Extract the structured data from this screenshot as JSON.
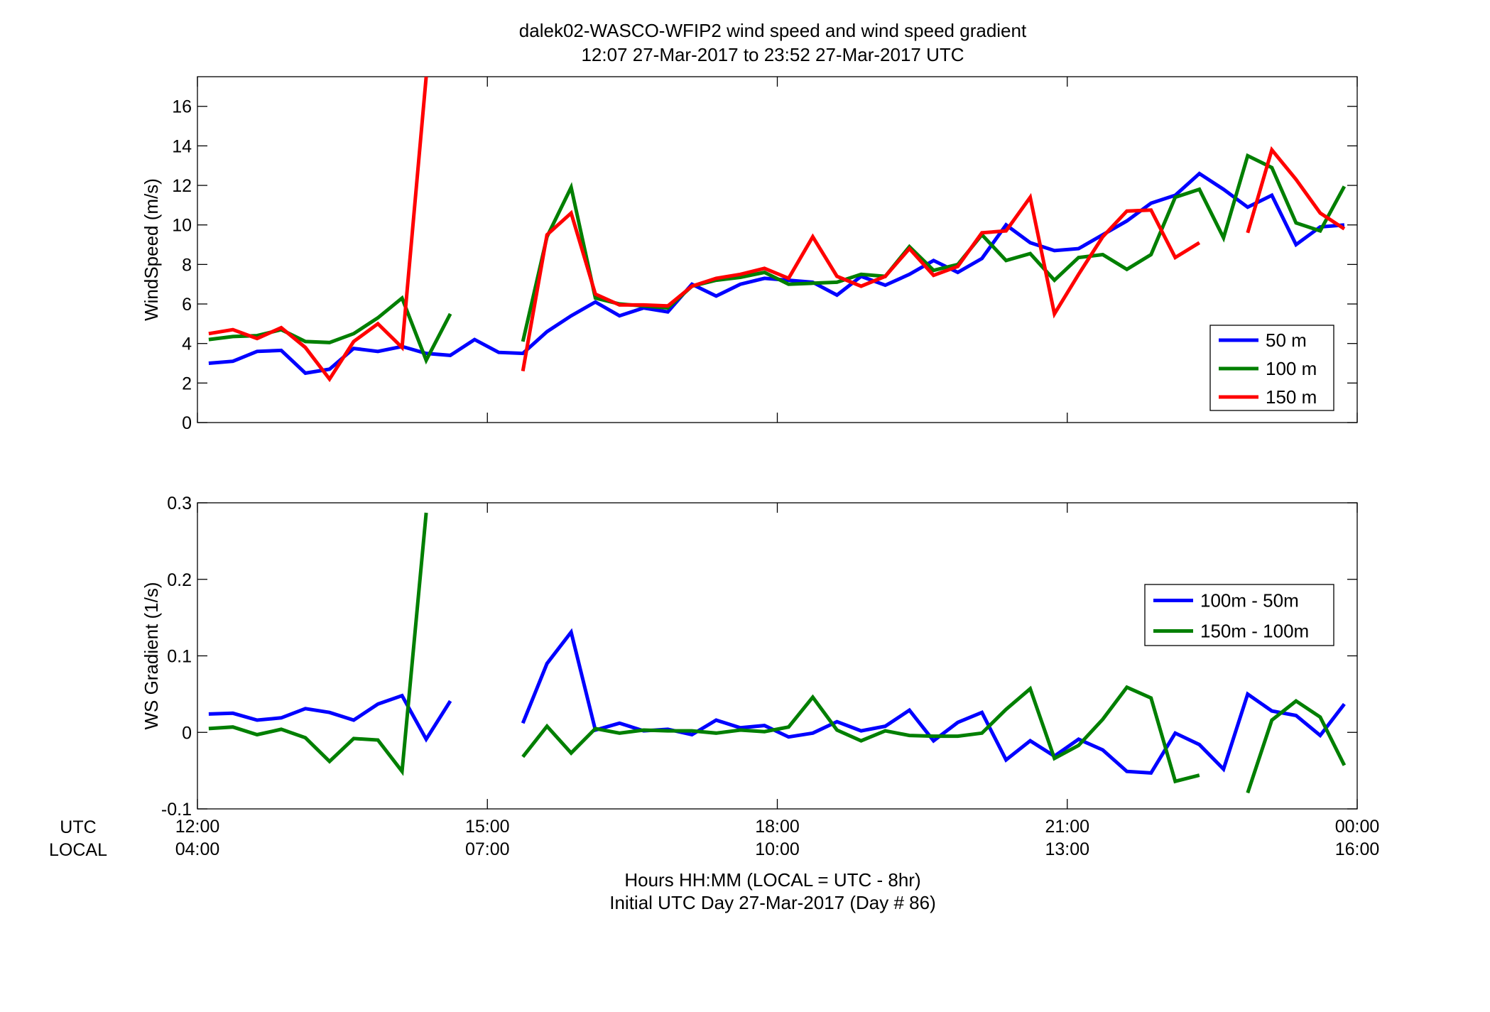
{
  "title_line1": "dalek02-WASCO-WFIP2  wind speed and wind speed gradient",
  "title_line2": "12:07 27-Mar-2017 to 23:52 27-Mar-2017  UTC",
  "xlabel_line1": "Hours HH:MM  (LOCAL = UTC - 8hr)",
  "xlabel_line2": "Initial UTC Day 27-Mar-2017 (Day # 86)",
  "row_label_utc": "UTC",
  "row_label_local": "LOCAL",
  "chart_data": [
    {
      "type": "line",
      "ylabel": "WindSpeed (m/s)",
      "xlim": [
        12,
        24
      ],
      "ylim": [
        0,
        17.5
      ],
      "yticks": [
        0,
        2,
        4,
        6,
        8,
        10,
        12,
        14,
        16
      ],
      "grid": false,
      "legend": "lower-right",
      "series": [
        {
          "name": "50 m",
          "color": "#0000ff",
          "points": [
            [
              12.117,
              3.0
            ],
            [
              12.367,
              3.1
            ],
            [
              12.617,
              3.6
            ],
            [
              12.867,
              3.65
            ],
            [
              13.117,
              2.5
            ],
            [
              13.367,
              2.7
            ],
            [
              13.617,
              3.75
            ],
            [
              13.867,
              3.6
            ],
            [
              14.117,
              3.85
            ],
            [
              14.367,
              3.5
            ],
            [
              14.617,
              3.4
            ],
            [
              14.867,
              4.2
            ],
            [
              15.117,
              3.55
            ],
            [
              15.367,
              3.5
            ],
            [
              15.617,
              4.6
            ],
            [
              15.867,
              5.4
            ],
            [
              16.117,
              6.1
            ],
            [
              16.367,
              5.4
            ],
            [
              16.617,
              5.8
            ],
            [
              16.867,
              5.6
            ],
            [
              17.117,
              7.0
            ],
            [
              17.367,
              6.4
            ],
            [
              17.617,
              7.0
            ],
            [
              17.867,
              7.3
            ],
            [
              18.117,
              7.2
            ],
            [
              18.367,
              7.1
            ],
            [
              18.617,
              6.45
            ],
            [
              18.867,
              7.4
            ],
            [
              19.117,
              6.95
            ],
            [
              19.367,
              7.5
            ],
            [
              19.617,
              8.2
            ],
            [
              19.867,
              7.6
            ],
            [
              20.117,
              8.3
            ],
            [
              20.367,
              10.0
            ],
            [
              20.617,
              9.1
            ],
            [
              20.867,
              8.7
            ],
            [
              21.117,
              8.8
            ],
            [
              21.367,
              9.5
            ],
            [
              21.617,
              10.2
            ],
            [
              21.867,
              11.1
            ],
            [
              22.117,
              11.5
            ],
            [
              22.367,
              12.6
            ],
            [
              22.617,
              11.8
            ],
            [
              22.867,
              10.9
            ],
            [
              23.117,
              11.5
            ],
            [
              23.367,
              9.0
            ],
            [
              23.617,
              9.9
            ],
            [
              23.867,
              10.0
            ]
          ]
        },
        {
          "name": "100 m",
          "color": "#007f00",
          "points": [
            [
              12.117,
              4.2
            ],
            [
              12.367,
              4.35
            ],
            [
              12.617,
              4.4
            ],
            [
              12.867,
              4.7
            ],
            [
              13.117,
              4.1
            ],
            [
              13.367,
              4.05
            ],
            [
              13.617,
              4.5
            ],
            [
              13.867,
              5.3
            ],
            [
              14.117,
              6.3
            ],
            [
              14.367,
              3.15
            ],
            [
              14.617,
              5.5
            ],
            null,
            null,
            [
              15.367,
              4.1
            ],
            [
              15.617,
              9.4
            ],
            [
              15.867,
              11.9
            ],
            [
              16.117,
              6.3
            ],
            [
              16.367,
              6.0
            ],
            [
              16.617,
              5.9
            ],
            [
              16.867,
              5.8
            ],
            [
              17.117,
              6.9
            ],
            [
              17.367,
              7.2
            ],
            [
              17.617,
              7.35
            ],
            [
              17.867,
              7.6
            ],
            [
              18.117,
              7.0
            ],
            [
              18.367,
              7.05
            ],
            [
              18.617,
              7.1
            ],
            [
              18.867,
              7.5
            ],
            [
              19.117,
              7.4
            ],
            [
              19.367,
              8.9
            ],
            [
              19.617,
              7.7
            ],
            [
              19.867,
              8.0
            ],
            [
              20.117,
              9.5
            ],
            [
              20.367,
              8.2
            ],
            [
              20.617,
              8.55
            ],
            [
              20.867,
              7.2
            ],
            [
              21.117,
              8.35
            ],
            [
              21.367,
              8.5
            ],
            [
              21.617,
              7.75
            ],
            [
              21.867,
              8.5
            ],
            [
              22.117,
              11.4
            ],
            [
              22.367,
              11.8
            ],
            [
              22.617,
              9.35
            ],
            [
              22.867,
              13.5
            ],
            [
              23.117,
              12.9
            ],
            [
              23.367,
              10.1
            ],
            [
              23.617,
              9.7
            ],
            [
              23.867,
              11.95
            ]
          ]
        },
        {
          "name": "150 m",
          "color": "#ff0000",
          "points": [
            [
              12.117,
              4.5
            ],
            [
              12.367,
              4.7
            ],
            [
              12.617,
              4.25
            ],
            [
              12.867,
              4.8
            ],
            [
              13.117,
              3.8
            ],
            [
              13.367,
              2.2
            ],
            [
              13.617,
              4.1
            ],
            [
              13.867,
              5.0
            ],
            [
              14.117,
              3.8
            ],
            [
              14.367,
              17.5
            ],
            null,
            null,
            null,
            [
              15.367,
              2.6
            ],
            [
              15.617,
              9.5
            ],
            [
              15.867,
              10.6
            ],
            [
              16.117,
              6.5
            ],
            [
              16.367,
              5.95
            ],
            [
              16.617,
              5.95
            ],
            [
              16.867,
              5.9
            ],
            [
              17.117,
              6.9
            ],
            [
              17.367,
              7.3
            ],
            [
              17.617,
              7.5
            ],
            [
              17.867,
              7.8
            ],
            [
              18.117,
              7.3
            ],
            [
              18.367,
              9.4
            ],
            [
              18.617,
              7.4
            ],
            [
              18.867,
              6.9
            ],
            [
              19.117,
              7.4
            ],
            [
              19.367,
              8.8
            ],
            [
              19.617,
              7.45
            ],
            [
              19.867,
              7.9
            ],
            [
              20.117,
              9.6
            ],
            [
              20.367,
              9.7
            ],
            [
              20.617,
              11.4
            ],
            [
              20.867,
              5.5
            ],
            [
              21.117,
              7.5
            ],
            [
              21.367,
              9.4
            ],
            [
              21.617,
              10.7
            ],
            [
              21.867,
              10.75
            ],
            [
              22.117,
              8.35
            ],
            [
              22.367,
              9.1
            ],
            null,
            [
              22.867,
              9.6
            ],
            [
              23.117,
              13.8
            ],
            [
              23.367,
              12.3
            ],
            [
              23.617,
              10.6
            ],
            [
              23.867,
              9.8
            ]
          ]
        }
      ]
    },
    {
      "type": "line",
      "ylabel": "WS Gradient (1/s)",
      "xlim": [
        12,
        24
      ],
      "ylim": [
        -0.1,
        0.3
      ],
      "yticks": [
        -0.1,
        0,
        0.1,
        0.2,
        0.3
      ],
      "ytick_labels": [
        "-0.1",
        "0",
        "0.1",
        "0.2",
        "0.3"
      ],
      "xticks": [
        12,
        15,
        18,
        21,
        24
      ],
      "xtick_labels_utc": [
        "12:00",
        "15:00",
        "18:00",
        "21:00",
        "00:00"
      ],
      "xtick_labels_local": [
        "04:00",
        "07:00",
        "10:00",
        "13:00",
        "16:00"
      ],
      "grid": false,
      "legend": "upper-right",
      "series": [
        {
          "name": "100m - 50m",
          "color": "#0000ff",
          "points": [
            [
              12.117,
              0.024
            ],
            [
              12.367,
              0.025
            ],
            [
              12.617,
              0.016
            ],
            [
              12.867,
              0.019
            ],
            [
              13.117,
              0.031
            ],
            [
              13.367,
              0.026
            ],
            [
              13.617,
              0.016
            ],
            [
              13.867,
              0.037
            ],
            [
              14.117,
              0.048
            ],
            [
              14.367,
              -0.009
            ],
            [
              14.617,
              0.041
            ],
            null,
            null,
            [
              15.367,
              0.012
            ],
            [
              15.617,
              0.09
            ],
            [
              15.867,
              0.131
            ],
            [
              16.117,
              0.003
            ],
            [
              16.367,
              0.012
            ],
            [
              16.617,
              0.002
            ],
            [
              16.867,
              0.004
            ],
            [
              17.117,
              -0.003
            ],
            [
              17.367,
              0.016
            ],
            [
              17.617,
              0.006
            ],
            [
              17.867,
              0.009
            ],
            [
              18.117,
              -0.006
            ],
            [
              18.367,
              -0.001
            ],
            [
              18.617,
              0.014
            ],
            [
              18.867,
              0.002
            ],
            [
              19.117,
              0.008
            ],
            [
              19.367,
              0.029
            ],
            [
              19.617,
              -0.011
            ],
            [
              19.867,
              0.013
            ],
            [
              20.117,
              0.026
            ],
            [
              20.367,
              -0.036
            ],
            [
              20.617,
              -0.011
            ],
            [
              20.867,
              -0.031
            ],
            [
              21.117,
              -0.009
            ],
            [
              21.367,
              -0.023
            ],
            [
              21.617,
              -0.051
            ],
            [
              21.867,
              -0.053
            ],
            [
              22.117,
              -0.001
            ],
            [
              22.367,
              -0.016
            ],
            [
              22.617,
              -0.048
            ],
            [
              22.867,
              0.05
            ],
            [
              23.117,
              0.028
            ],
            [
              23.367,
              0.022
            ],
            [
              23.617,
              -0.004
            ],
            [
              23.867,
              0.037
            ]
          ]
        },
        {
          "name": "150m - 100m",
          "color": "#007f00",
          "points": [
            [
              12.117,
              0.005
            ],
            [
              12.367,
              0.007
            ],
            [
              12.617,
              -0.003
            ],
            [
              12.867,
              0.004
            ],
            [
              13.117,
              -0.007
            ],
            [
              13.367,
              -0.038
            ],
            [
              13.617,
              -0.008
            ],
            [
              13.867,
              -0.01
            ],
            [
              14.117,
              -0.051
            ],
            [
              14.367,
              0.287
            ],
            null,
            null,
            null,
            [
              15.367,
              -0.032
            ],
            [
              15.617,
              0.008
            ],
            [
              15.867,
              -0.027
            ],
            [
              16.117,
              0.005
            ],
            [
              16.367,
              -0.001
            ],
            [
              16.617,
              0.003
            ],
            [
              16.867,
              0.002
            ],
            [
              17.117,
              0.002
            ],
            [
              17.367,
              -0.001
            ],
            [
              17.617,
              0.003
            ],
            [
              17.867,
              0.001
            ],
            [
              18.117,
              0.007
            ],
            [
              18.367,
              0.046
            ],
            [
              18.617,
              0.003
            ],
            [
              18.867,
              -0.011
            ],
            [
              19.117,
              0.002
            ],
            [
              19.367,
              -0.004
            ],
            [
              19.617,
              -0.005
            ],
            [
              19.867,
              -0.005
            ],
            [
              20.117,
              -0.001
            ],
            [
              20.367,
              0.03
            ],
            [
              20.617,
              0.057
            ],
            [
              20.867,
              -0.034
            ],
            [
              21.117,
              -0.017
            ],
            [
              21.367,
              0.017
            ],
            [
              21.617,
              0.059
            ],
            [
              21.867,
              0.045
            ],
            [
              22.117,
              -0.064
            ],
            [
              22.367,
              -0.056
            ],
            null,
            [
              22.867,
              -0.079
            ],
            [
              23.117,
              0.016
            ],
            [
              23.367,
              0.041
            ],
            [
              23.617,
              0.02
            ],
            [
              23.867,
              -0.043
            ]
          ]
        }
      ]
    }
  ]
}
